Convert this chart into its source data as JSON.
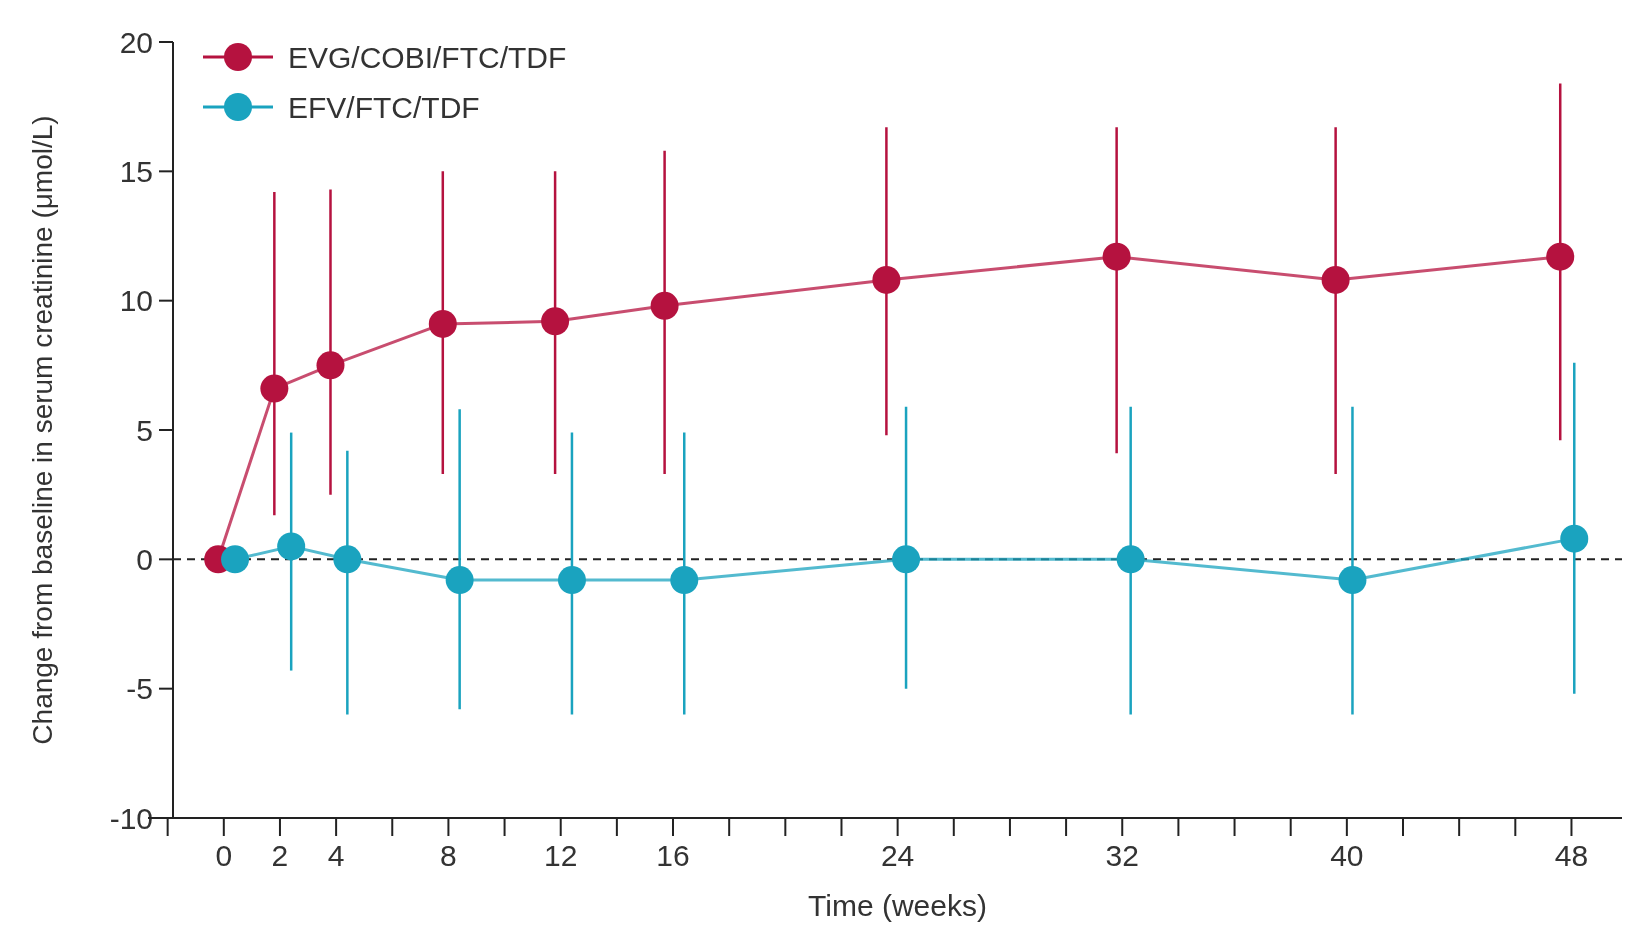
{
  "chart_data": {
    "type": "line",
    "xlabel": "Time (weeks)",
    "ylabel": "Change from baseline in serum creatinine (μmol/L)",
    "xlim": [
      -2.7,
      49.8
    ],
    "ylim": [
      -10,
      20
    ],
    "xticks": [
      0,
      2,
      4,
      8,
      12,
      16,
      24,
      32,
      40,
      48
    ],
    "yticks": [
      -10,
      -5,
      0,
      5,
      10,
      15,
      20
    ],
    "grid": false,
    "legend": "top left",
    "marker": "circle",
    "line_style": "solid",
    "ref_lines": [
      {
        "axis": "y",
        "value": 0,
        "color": "#222222",
        "line_style": "dashed"
      }
    ],
    "series": [
      {
        "name": "EVG/COBI/FTC/TDF",
        "color": "#b5123f",
        "x": [
          -0.2,
          1.8,
          3.8,
          7.8,
          11.8,
          15.7,
          23.6,
          31.8,
          39.6,
          47.6
        ],
        "values": [
          0,
          6.6,
          7.5,
          9.1,
          9.2,
          9.8,
          10.8,
          11.7,
          10.8,
          11.7
        ],
        "errors": [
          null,
          [
            1.7,
            14.2
          ],
          [
            2.5,
            14.3
          ],
          [
            3.3,
            15.0
          ],
          [
            3.3,
            15.0
          ],
          [
            3.3,
            15.8
          ],
          [
            4.8,
            16.7
          ],
          [
            4.1,
            16.7
          ],
          [
            3.3,
            16.7
          ],
          [
            4.6,
            18.4
          ]
        ]
      },
      {
        "name": "EFV/FTC/TDF",
        "color": "#1aa3bf",
        "x": [
          0.4,
          2.4,
          4.4,
          8.4,
          12.4,
          16.4,
          24.3,
          32.3,
          40.2,
          48.1
        ],
        "values": [
          0,
          0.5,
          0,
          -0.8,
          -0.8,
          -0.8,
          0,
          0,
          -0.8,
          0.8
        ],
        "errors": [
          null,
          [
            -4.3,
            4.9
          ],
          [
            -6.0,
            4.2
          ],
          [
            -5.8,
            5.8
          ],
          [
            -6.0,
            4.9
          ],
          [
            -6.0,
            4.9
          ],
          [
            -5.0,
            5.9
          ],
          [
            -6.0,
            5.9
          ],
          [
            -6.0,
            5.9
          ],
          [
            -5.2,
            7.6
          ]
        ]
      }
    ]
  }
}
